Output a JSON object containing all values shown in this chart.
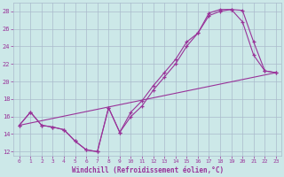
{
  "xlabel": "Windchill (Refroidissement éolien,°C)",
  "bg_color": "#cce8e8",
  "line_color": "#993399",
  "grid_color": "#aabbcc",
  "xlim_min": -0.5,
  "xlim_max": 23.5,
  "ylim_min": 11.5,
  "ylim_max": 29.0,
  "xticks": [
    0,
    1,
    2,
    3,
    4,
    5,
    6,
    7,
    8,
    9,
    10,
    11,
    12,
    13,
    14,
    15,
    16,
    17,
    18,
    19,
    20,
    21,
    22,
    23
  ],
  "yticks": [
    12,
    14,
    16,
    18,
    20,
    22,
    24,
    26,
    28
  ],
  "curve1_x": [
    0,
    1,
    2,
    3,
    4,
    5,
    6,
    7,
    8,
    9,
    10,
    11,
    12,
    13,
    14,
    15,
    16,
    17,
    18,
    19,
    20,
    21,
    22,
    23
  ],
  "curve1_y": [
    15,
    16.5,
    15,
    14.8,
    14.5,
    13.2,
    12.2,
    12.0,
    17.0,
    14.2,
    16.5,
    17.8,
    19.5,
    21.0,
    22.5,
    24.5,
    25.5,
    27.8,
    28.2,
    28.2,
    28.1,
    24.5,
    21.2,
    21.0
  ],
  "curve2_x": [
    0,
    1,
    2,
    3,
    4,
    5,
    6,
    7,
    8,
    9,
    10,
    11,
    12,
    13,
    14,
    15,
    16,
    17,
    18,
    19,
    20,
    21,
    22,
    23
  ],
  "curve2_y": [
    15,
    16.5,
    15,
    14.8,
    14.5,
    13.2,
    12.2,
    12.0,
    17.0,
    14.2,
    16.0,
    17.2,
    19.0,
    20.5,
    22.0,
    24.0,
    25.5,
    27.5,
    28.0,
    28.2,
    26.8,
    23.0,
    21.2,
    21.0
  ],
  "line_x": [
    0,
    23
  ],
  "line_y": [
    15.0,
    21.0
  ]
}
